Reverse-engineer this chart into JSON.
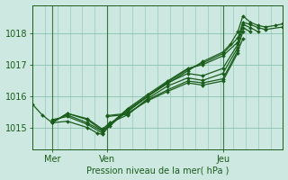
{
  "bg_color": "#cce8e0",
  "line_color": "#1a5c1a",
  "grid_color": "#88c4b0",
  "xlabel": "Pression niveau de la mer( hPa )",
  "xlabel_color": "#1a5c1a",
  "yticks": [
    1015,
    1016,
    1017,
    1018
  ],
  "ylim": [
    1014.3,
    1018.9
  ],
  "xlim": [
    0.0,
    1.0
  ],
  "xtick_positions": [
    0.08,
    0.3,
    0.76
  ],
  "xtick_labels": [
    "Mer",
    "Ven",
    "Jeu"
  ],
  "vline_positions": [
    0.08,
    0.3,
    0.76
  ],
  "series": [
    {
      "x": [
        0.0,
        0.04,
        0.08,
        0.14,
        0.22,
        0.26,
        0.28,
        0.31,
        0.38,
        0.46,
        0.54,
        0.62,
        0.68,
        0.76,
        0.79,
        0.82,
        0.84,
        0.87,
        0.9,
        0.93,
        0.97,
        1.0
      ],
      "y": [
        1015.75,
        1015.4,
        1015.15,
        1015.2,
        1015.0,
        1014.82,
        1014.78,
        1015.1,
        1015.55,
        1016.0,
        1016.4,
        1016.8,
        1017.1,
        1017.4,
        1017.65,
        1018.05,
        1018.55,
        1018.35,
        1018.25,
        1018.2,
        1018.25,
        1018.3
      ]
    },
    {
      "x": [
        0.08,
        0.14,
        0.22,
        0.28,
        0.31,
        0.38,
        0.46,
        0.54,
        0.62,
        0.68,
        0.76,
        0.82,
        0.84,
        0.87,
        0.9,
        0.93,
        1.0
      ],
      "y": [
        1015.25,
        1015.35,
        1015.1,
        1014.82,
        1015.05,
        1015.55,
        1016.0,
        1016.45,
        1016.85,
        1017.05,
        1017.35,
        1017.85,
        1018.35,
        1018.28,
        1018.18,
        1018.12,
        1018.2
      ]
    },
    {
      "x": [
        0.08,
        0.14,
        0.22,
        0.28,
        0.31,
        0.38,
        0.46,
        0.54,
        0.62,
        0.68,
        0.76,
        0.82,
        0.84,
        0.87,
        0.9
      ],
      "y": [
        1015.2,
        1015.4,
        1015.15,
        1014.88,
        1015.1,
        1015.6,
        1016.05,
        1016.48,
        1016.88,
        1017.0,
        1017.28,
        1017.72,
        1018.28,
        1018.18,
        1018.05
      ]
    },
    {
      "x": [
        0.08,
        0.14,
        0.22,
        0.28,
        0.31,
        0.38,
        0.46,
        0.54,
        0.62,
        0.68,
        0.76,
        0.82,
        0.84,
        0.87
      ],
      "y": [
        1015.15,
        1015.45,
        1015.25,
        1014.9,
        1015.1,
        1015.5,
        1015.98,
        1016.42,
        1016.72,
        1016.65,
        1016.88,
        1017.65,
        1018.18,
        1018.05
      ]
    },
    {
      "x": [
        0.08,
        0.14,
        0.22,
        0.28,
        0.31,
        0.38,
        0.46,
        0.54,
        0.62,
        0.68,
        0.76,
        0.82,
        0.84
      ],
      "y": [
        1015.15,
        1015.45,
        1015.28,
        1014.95,
        1015.15,
        1015.4,
        1015.92,
        1016.32,
        1016.58,
        1016.5,
        1016.72,
        1017.55,
        1018.05
      ]
    },
    {
      "x": [
        0.3,
        0.38,
        0.46,
        0.54,
        0.62,
        0.68,
        0.76,
        0.82,
        0.84
      ],
      "y": [
        1015.35,
        1015.42,
        1015.88,
        1016.2,
        1016.48,
        1016.42,
        1016.55,
        1017.45,
        1017.82
      ]
    },
    {
      "x": [
        0.3,
        0.38,
        0.46,
        0.54,
        0.62,
        0.68,
        0.76,
        0.82
      ],
      "y": [
        1015.38,
        1015.45,
        1015.85,
        1016.15,
        1016.42,
        1016.35,
        1016.48,
        1017.38
      ]
    }
  ]
}
